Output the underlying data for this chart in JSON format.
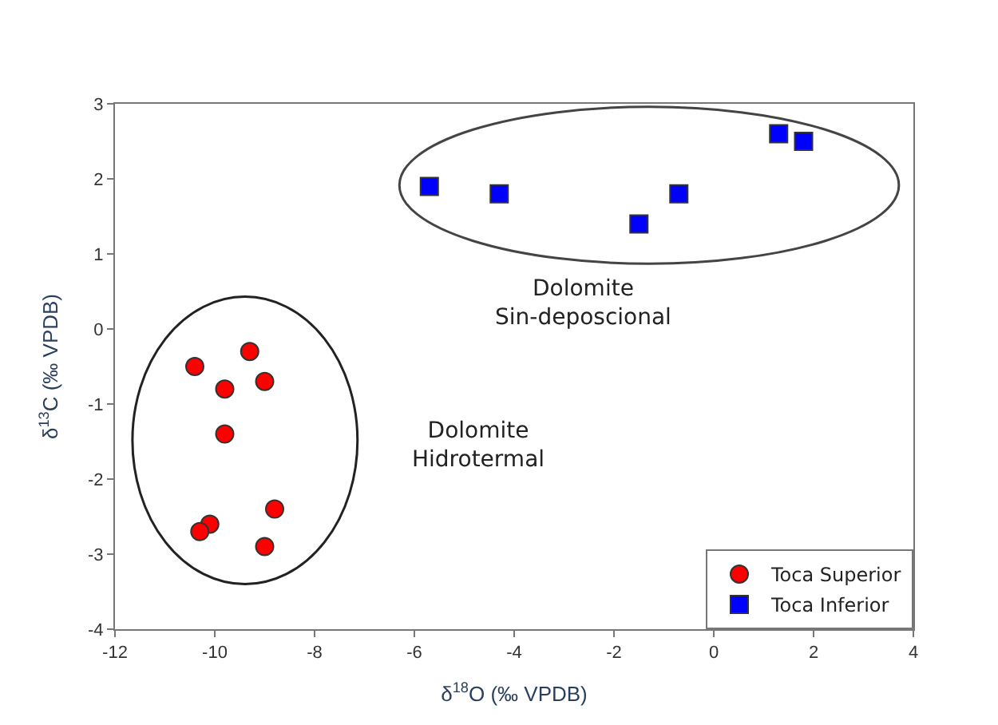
{
  "chart_data": {
    "type": "scatter",
    "xlabel": "δ$^{18}$O (‰ VPDB)",
    "ylabel": "δ$^{13}$C (‰ VPDB)",
    "series": [
      {
        "name": "Toca Superior",
        "color": "#ff0000",
        "marker": "circle",
        "x": [
          -10.4,
          -9.3,
          -9.8,
          -9.0,
          -9.8,
          -8.8,
          -10.1,
          -10.3,
          -9.0
        ],
        "values": [
          -0.5,
          -0.3,
          -0.8,
          -0.7,
          -1.4,
          -2.4,
          -2.6,
          -2.7,
          -2.9
        ]
      },
      {
        "name": "Toca Inferior",
        "color": "#0000ff",
        "marker": "square",
        "x": [
          -5.7,
          -4.3,
          -1.5,
          -0.7,
          1.3,
          1.8
        ],
        "values": [
          1.9,
          1.8,
          1.4,
          1.8,
          2.6,
          2.5
        ]
      }
    ],
    "annotations": [
      "Dolomite\nHidrotermal",
      "Dolomite\nSin-deposcional"
    ],
    "xlim": [
      -12,
      4
    ],
    "xticks": [
      -12,
      -10,
      -8,
      -6,
      -4,
      -2,
      0,
      2,
      4
    ],
    "ylim": [
      -4,
      3
    ],
    "yticks": [
      -4,
      -3,
      -2,
      -1,
      0,
      1,
      2,
      3
    ],
    "legend": "bottom right"
  }
}
